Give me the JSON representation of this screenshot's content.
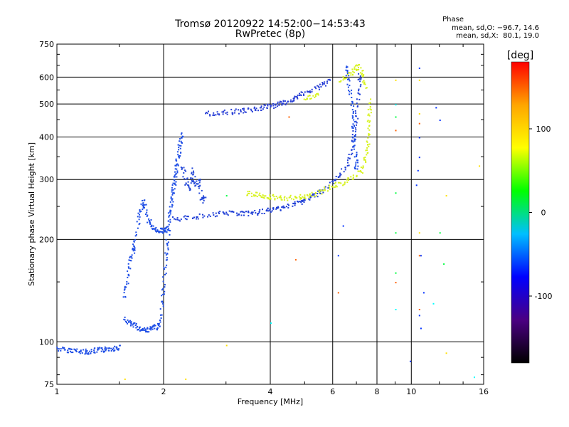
{
  "title_line1": "Tromsø 20120922 14:52:00−14:53:43",
  "title_line2": "RwPretec (8p)",
  "phase_title": "Phase",
  "phase_line1": "mean, sd,O: −96.7, 14.6",
  "phase_line2": "mean, sd,X:  80.1, 19.0",
  "chart_data": {
    "type": "scatter",
    "xlabel": "Frequency [MHz]",
    "ylabel": "Stationary phase Virtual Height [km]",
    "xscale": "log",
    "yscale": "log",
    "xlim": [
      1,
      16
    ],
    "ylim": [
      75,
      750
    ],
    "xticks": [
      1,
      2,
      4,
      6,
      8,
      10,
      16
    ],
    "yticks": [
      75,
      100,
      200,
      300,
      400,
      500,
      600,
      750
    ],
    "grid": true,
    "colorbar": {
      "label": "[deg]",
      "range": [
        -180,
        180
      ],
      "ticks": [
        100,
        0,
        -100
      ],
      "colors": [
        "#000000",
        "#4b0082",
        "#0000ff",
        "#00bfff",
        "#00ff00",
        "#ffff00",
        "#ffa500",
        "#ff0000"
      ]
    },
    "series": [
      {
        "color": "#1e4ee6",
        "points": [
          [
            1.0,
            96
          ],
          [
            1.05,
            95
          ],
          [
            1.1,
            95
          ],
          [
            1.15,
            94
          ],
          [
            1.2,
            94
          ],
          [
            1.25,
            94
          ],
          [
            1.3,
            95
          ],
          [
            1.35,
            95
          ],
          [
            1.4,
            96
          ],
          [
            1.45,
            96
          ],
          [
            1.5,
            97
          ]
        ]
      },
      {
        "color": "#1e4ee6",
        "points": [
          [
            1.55,
            117
          ],
          [
            1.6,
            114
          ],
          [
            1.65,
            112
          ],
          [
            1.7,
            110
          ],
          [
            1.75,
            109
          ],
          [
            1.8,
            109
          ],
          [
            1.85,
            110
          ],
          [
            1.9,
            111
          ],
          [
            1.95,
            113
          ]
        ]
      },
      {
        "color": "#1e4ee6",
        "points": [
          [
            1.55,
            135
          ],
          [
            1.57,
            150
          ],
          [
            1.6,
            170
          ],
          [
            1.63,
            185
          ],
          [
            1.65,
            195
          ],
          [
            1.7,
            230
          ],
          [
            1.73,
            250
          ],
          [
            1.75,
            262
          ]
        ]
      },
      {
        "color": "#1e4ee6",
        "points": [
          [
            1.75,
            255
          ],
          [
            1.8,
            230
          ],
          [
            1.85,
            218
          ],
          [
            1.9,
            214
          ],
          [
            1.95,
            213
          ],
          [
            2.0,
            214
          ],
          [
            2.05,
            215
          ]
        ]
      },
      {
        "color": "#1e4ee6",
        "points": [
          [
            1.95,
            110
          ],
          [
            1.97,
            130
          ],
          [
            2.0,
            150
          ],
          [
            2.02,
            175
          ],
          [
            2.04,
            195
          ],
          [
            2.06,
            220
          ],
          [
            2.08,
            240
          ],
          [
            2.1,
            260
          ],
          [
            2.12,
            280
          ],
          [
            2.14,
            300
          ],
          [
            2.16,
            320
          ],
          [
            2.18,
            340
          ],
          [
            2.2,
            360
          ],
          [
            2.22,
            390
          ],
          [
            2.25,
            410
          ]
        ]
      },
      {
        "color": "#2448d8",
        "points": [
          [
            2.25,
            330
          ],
          [
            2.3,
            300
          ],
          [
            2.35,
            280
          ],
          [
            2.4,
            320
          ],
          [
            2.45,
            290
          ],
          [
            2.5,
            300
          ],
          [
            2.55,
            260
          ],
          [
            2.6,
            270
          ]
        ]
      },
      {
        "color": "#1e3ed6",
        "points": [
          [
            2.1,
            230
          ],
          [
            2.3,
            232
          ],
          [
            2.5,
            235
          ],
          [
            2.8,
            238
          ],
          [
            3.0,
            240
          ],
          [
            3.2,
            240
          ],
          [
            3.4,
            239
          ],
          [
            3.6,
            240
          ],
          [
            3.8,
            242
          ],
          [
            4.0,
            245
          ],
          [
            4.2,
            248
          ],
          [
            4.5,
            252
          ],
          [
            4.8,
            258
          ],
          [
            5.0,
            262
          ],
          [
            5.3,
            270
          ],
          [
            5.6,
            280
          ],
          [
            6.0,
            295
          ],
          [
            6.3,
            310
          ],
          [
            6.6,
            340
          ],
          [
            6.8,
            380
          ],
          [
            6.9,
            420
          ],
          [
            7.0,
            480
          ],
          [
            7.1,
            560
          ],
          [
            7.15,
            620
          ]
        ]
      },
      {
        "color": "#2a40d6",
        "points": [
          [
            2.6,
            470
          ],
          [
            2.8,
            473
          ],
          [
            3.0,
            475
          ],
          [
            3.2,
            478
          ],
          [
            3.4,
            481
          ],
          [
            3.6,
            485
          ],
          [
            3.8,
            490
          ],
          [
            4.0,
            495
          ],
          [
            4.2,
            500
          ],
          [
            4.4,
            508
          ],
          [
            4.6,
            518
          ],
          [
            4.8,
            530
          ],
          [
            5.0,
            540
          ],
          [
            5.3,
            555
          ],
          [
            5.6,
            570
          ],
          [
            5.9,
            590
          ]
        ]
      },
      {
        "color": "#1e4ee6",
        "points": [
          [
            6.5,
            650
          ],
          [
            6.6,
            600
          ],
          [
            6.7,
            540
          ],
          [
            6.8,
            470
          ],
          [
            6.85,
            420
          ],
          [
            6.9,
            380
          ],
          [
            6.95,
            340
          ],
          [
            7.0,
            320
          ]
        ]
      },
      {
        "color": "#d7f21e",
        "points": [
          [
            3.4,
            275
          ],
          [
            3.6,
            272
          ],
          [
            3.8,
            270
          ],
          [
            4.0,
            268
          ],
          [
            4.2,
            267
          ],
          [
            4.5,
            266
          ],
          [
            4.8,
            267
          ],
          [
            5.0,
            269
          ],
          [
            5.3,
            273
          ],
          [
            5.6,
            280
          ],
          [
            6.0,
            288
          ],
          [
            6.4,
            295
          ],
          [
            6.8,
            305
          ],
          [
            7.2,
            320
          ],
          [
            7.4,
            345
          ],
          [
            7.5,
            380
          ],
          [
            7.55,
            420
          ],
          [
            7.6,
            470
          ],
          [
            7.6,
            520
          ]
        ]
      },
      {
        "color": "#d7f21e",
        "points": [
          [
            6.3,
            590
          ],
          [
            6.6,
            610
          ],
          [
            6.9,
            630
          ],
          [
            7.1,
            650
          ],
          [
            7.3,
            600
          ],
          [
            7.4,
            560
          ]
        ]
      },
      {
        "color": "#d7f21e",
        "points": [
          [
            5.0,
            520
          ],
          [
            5.2,
            525
          ],
          [
            5.5,
            540
          ]
        ]
      }
    ],
    "sparse": [
      {
        "color": "#ffe000",
        "points": [
          [
            1.55,
            78
          ],
          [
            2.3,
            78
          ],
          [
            3.0,
            98
          ],
          [
            12.5,
            93
          ],
          [
            9.0,
            590
          ],
          [
            10.5,
            590
          ],
          [
            10.5,
            470
          ],
          [
            12.5,
            270
          ],
          [
            10.5,
            210
          ],
          [
            15.5,
            330
          ]
        ]
      },
      {
        "color": "#ff6000",
        "points": [
          [
            9.0,
            420
          ],
          [
            9.0,
            150
          ],
          [
            10.5,
            180
          ],
          [
            4.5,
            460
          ],
          [
            4.7,
            175
          ],
          [
            6.2,
            140
          ],
          [
            10.5,
            125
          ],
          [
            10.5,
            440
          ]
        ]
      },
      {
        "color": "#0030ff",
        "points": [
          [
            10.5,
            640
          ],
          [
            10.5,
            400
          ],
          [
            10.5,
            350
          ],
          [
            10.4,
            320
          ],
          [
            10.3,
            290
          ],
          [
            10.6,
            180
          ],
          [
            10.8,
            140
          ],
          [
            10.5,
            120
          ],
          [
            10.6,
            110
          ],
          [
            9.9,
            88
          ],
          [
            12.0,
            450
          ],
          [
            11.7,
            490
          ],
          [
            6.2,
            180
          ],
          [
            6.4,
            220
          ]
        ]
      },
      {
        "color": "#00ffff",
        "points": [
          [
            9.0,
            500
          ],
          [
            15.0,
            79
          ],
          [
            9.0,
            125
          ],
          [
            11.5,
            130
          ],
          [
            4.0,
            114
          ]
        ]
      },
      {
        "color": "#00ff40",
        "points": [
          [
            9.0,
            460
          ],
          [
            9.0,
            275
          ],
          [
            3.0,
            270
          ],
          [
            12.0,
            210
          ],
          [
            12.3,
            170
          ],
          [
            9.0,
            210
          ],
          [
            9.0,
            160
          ]
        ]
      }
    ]
  }
}
